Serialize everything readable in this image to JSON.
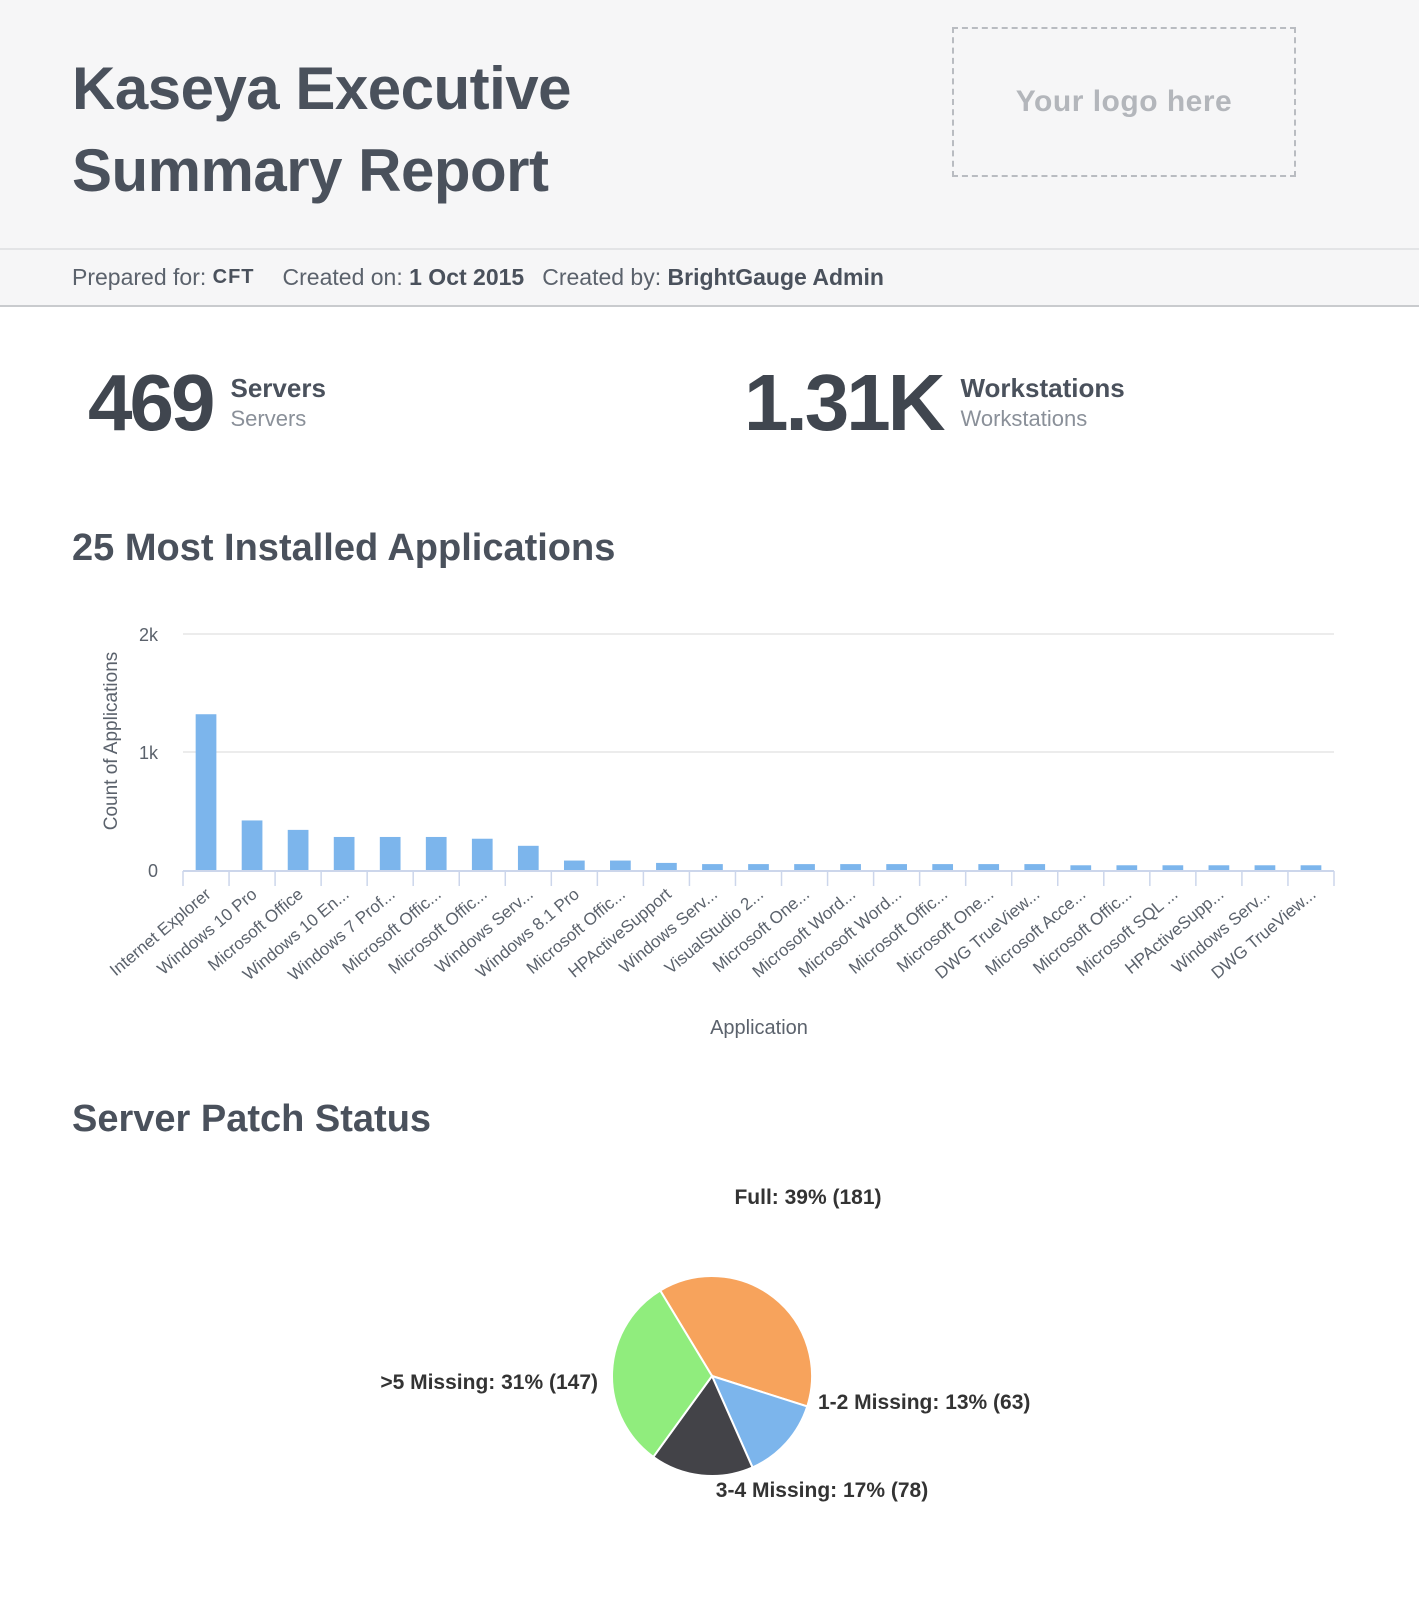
{
  "header": {
    "title_line1": "Kaseya Executive",
    "title_line2": "Summary Report",
    "logo_placeholder": "Your logo here"
  },
  "meta": {
    "prepared_for_label": "Prepared for:",
    "prepared_for_value": "CFT",
    "created_on_label": "Created on:",
    "created_on_value": "1 Oct 2015",
    "created_by_label": "Created by:",
    "created_by_value": "BrightGauge Admin"
  },
  "kpis": {
    "servers": {
      "value": "469",
      "label": "Servers",
      "sublabel": "Servers"
    },
    "workstations": {
      "value": "1.31K",
      "label": "Workstations",
      "sublabel": "Workstations"
    }
  },
  "sections": {
    "apps_title": "25 Most Installed Applications",
    "patch_title": "Server Patch Status"
  },
  "chart_data": [
    {
      "type": "bar",
      "title": "25 Most Installed Applications",
      "xlabel": "Application",
      "ylabel": "Count of Applications",
      "ylim": [
        0,
        2000
      ],
      "yticks": [
        {
          "value": 0,
          "label": "0"
        },
        {
          "value": 1000,
          "label": "1k"
        },
        {
          "value": 2000,
          "label": "2k"
        }
      ],
      "grid": true,
      "color": "#7cb5ec",
      "categories": [
        "Internet Explorer",
        "Windows 10 Pro",
        "Microsoft Office",
        "Windows 10 En...",
        "Windows 7 Prof...",
        "Microsoft Offic...",
        "Microsoft Offic...",
        "Windows Serv...",
        "Windows 8.1 Pro",
        "Microsoft Offic...",
        "HPActiveSupport",
        "Windows Serv...",
        "VisualStudio 2...",
        "Microsoft One...",
        "Microsoft Word...",
        "Microsoft Word...",
        "Microsoft Offic...",
        "Microsoft One...",
        "DWG TrueView...",
        "Microsoft Acce...",
        "Microsoft Offic...",
        "Microsoft SQL ...",
        "HPActiveSupp...",
        "Windows Serv...",
        "DWG TrueView..."
      ],
      "values": [
        1320,
        420,
        340,
        280,
        280,
        280,
        265,
        205,
        80,
        80,
        60,
        50,
        50,
        50,
        50,
        50,
        50,
        50,
        50,
        40,
        40,
        40,
        40,
        40,
        40
      ]
    },
    {
      "type": "pie",
      "title": "Server Patch Status",
      "slices": [
        {
          "name": "Full",
          "percent": 39,
          "count": 181,
          "label": "Full: 39% (181)",
          "color": "#f7a35c"
        },
        {
          "name": "1-2 Missing",
          "percent": 13,
          "count": 63,
          "label": "1-2 Missing: 13% (63)",
          "color": "#7cb5ec"
        },
        {
          "name": "3-4 Missing",
          "percent": 17,
          "count": 78,
          "label": "3-4 Missing: 17% (78)",
          "color": "#434348"
        },
        {
          "name": ">5 Missing",
          "percent": 31,
          "count": 147,
          "label": ">5 Missing: 31% (147)",
          "color": "#90ed7d"
        }
      ]
    }
  ]
}
